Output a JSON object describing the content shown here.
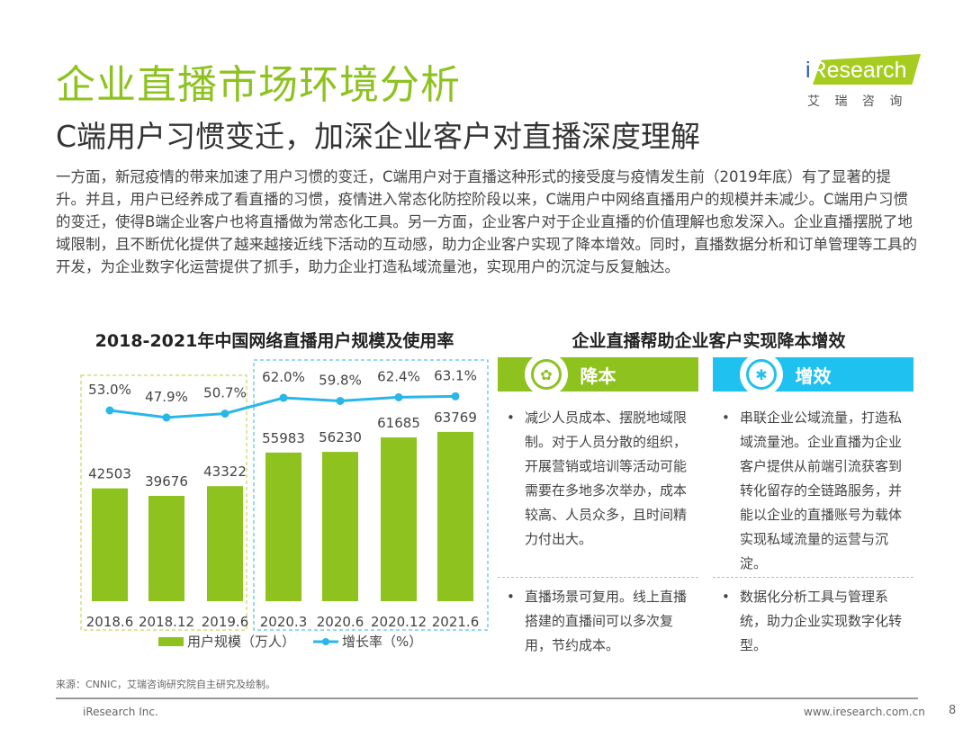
{
  "title": "企业直播市场环境分析",
  "subtitle": "C端用户习惯变迁，加深企业客户对直播深度理解",
  "logo": {
    "text": "iResearch",
    "sub": "艾 瑞 咨 询"
  },
  "intro": "一方面，新冠疫情的带来加速了用户习惯的变迁，C端用户对于直播这种形式的接受度与疫情发生前（2019年底）有了显著的提升。并且，用户已经养成了看直播的习惯，疫情进入常态化防控阶段以来，C端用户中网络直播用户的规模并未减少。C端用户习惯的变迁，使得B端企业客户也将直播做为常态化工具。另一方面，企业客户对于企业直播的价值理解也愈发深入。企业直播摆脱了地域限制，且不断优化提供了越来越接近线下活动的互动感，助力企业客户实现了降本增效。同时，直播数据分析和订单管理等工具的开发，为企业数字化运营提供了抓手，助力企业打造私域流量池，实现用户的沉淀与反复触达。",
  "chart_data": {
    "type": "bar",
    "title": "2018-2021年中国网络直播用户规模及使用率",
    "categories": [
      "2018.6",
      "2018.12",
      "2019.6",
      "2020.3",
      "2020.6",
      "2020.12",
      "2021.6"
    ],
    "series": [
      {
        "name": "用户规模（万人）",
        "type": "bar",
        "values": [
          42503,
          39676,
          43322,
          55983,
          56230,
          61685,
          63769
        ],
        "color": "#8dc21f"
      },
      {
        "name": "增长率（%）",
        "type": "line",
        "values": [
          53.0,
          47.9,
          50.7,
          62.0,
          59.8,
          62.4,
          63.1
        ],
        "color": "#29b6e8"
      }
    ],
    "legend": "bottom"
  },
  "right": {
    "title": "企业直播帮助企业客户实现降本增效",
    "cards": [
      {
        "label": "降本",
        "icon": "cost-reduction-icon",
        "color": "#8dc21f",
        "items": [
          "减少人员成本、摆脱地域限制。对于人员分散的组织，开展营销或培训等活动可能需要在多地多次举办，成本较高、人员众多，且时间精力付出大。",
          "直播场景可复用。线上直播搭建的直播间可以多次复用，节约成本。"
        ]
      },
      {
        "label": "增效",
        "icon": "efficiency-icon",
        "color": "#1ec1ef",
        "items": [
          "串联企业公域流量，打造私域流量池。企业直播为企业客户提供从前端引流获客到转化留存的全链路服务，并能以企业的直播账号为载体实现私域流量的运营与沉淀。",
          "数据化分析工具与管理系统，助力企业实现数字化转型。"
        ]
      }
    ]
  },
  "footer": {
    "source": "来源：CNNIC，艾瑞咨询研究院自主研究及绘制。",
    "copyright": "iResearch Inc.",
    "url": "www.iresearch.com.cn",
    "page": "8"
  }
}
